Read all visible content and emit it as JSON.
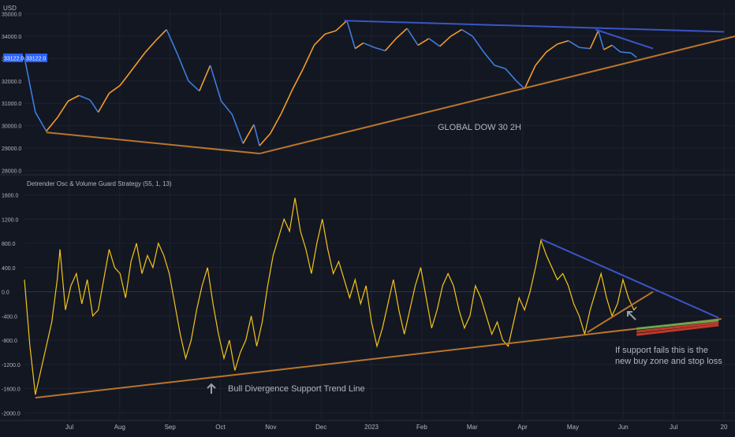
{
  "colors": {
    "background": "#131722",
    "axis_text": "#b2b5be",
    "grid": "#1e2230",
    "price_up": "#f39c2b",
    "price_down": "#3d7ddb",
    "osc_line": "#f5c518",
    "trend_brown": "#b8752a",
    "trend_blue": "#3a55c6",
    "price_badge": "#2962ff",
    "buy_zone_green": "#6aa84f",
    "buy_zone_red": "#c0392b",
    "annotation": "#b2b5be"
  },
  "chart_data": [
    {
      "type": "line",
      "title": "GLOBAL DOW 30 2H",
      "currency_label": "USD",
      "ylim": [
        27800,
        35200
      ],
      "y_ticks": [
        "35000.0",
        "34000.0",
        "33000.0",
        "32000.0",
        "31000.0",
        "30000.0",
        "29000.0",
        "28000.0"
      ],
      "current_price_badge": "33122.0",
      "current_price_badge_b": "33122.0",
      "series": [
        {
          "values": [
            {
              "x": 0,
              "y": 33050
            },
            {
              "x": 4,
              "y": 30600
            },
            {
              "x": 8,
              "y": 29750
            },
            {
              "x": 12,
              "y": 30350
            },
            {
              "x": 16,
              "y": 31100
            },
            {
              "x": 20,
              "y": 31350
            },
            {
              "x": 24,
              "y": 31150
            },
            {
              "x": 27,
              "y": 30600
            },
            {
              "x": 31,
              "y": 31450
            },
            {
              "x": 35,
              "y": 31800
            },
            {
              "x": 40,
              "y": 32600
            },
            {
              "x": 44,
              "y": 33250
            },
            {
              "x": 48,
              "y": 33800
            },
            {
              "x": 52,
              "y": 34300
            },
            {
              "x": 56,
              "y": 33200
            },
            {
              "x": 60,
              "y": 32000
            },
            {
              "x": 64,
              "y": 31550
            },
            {
              "x": 68,
              "y": 32700
            },
            {
              "x": 72,
              "y": 31100
            },
            {
              "x": 76,
              "y": 30500
            },
            {
              "x": 80,
              "y": 29200
            },
            {
              "x": 84,
              "y": 30050
            },
            {
              "x": 86,
              "y": 29100
            },
            {
              "x": 90,
              "y": 29650
            },
            {
              "x": 94,
              "y": 30550
            },
            {
              "x": 98,
              "y": 31600
            },
            {
              "x": 102,
              "y": 32550
            },
            {
              "x": 106,
              "y": 33600
            },
            {
              "x": 110,
              "y": 34100
            },
            {
              "x": 114,
              "y": 34250
            },
            {
              "x": 118,
              "y": 34700
            },
            {
              "x": 121,
              "y": 33450
            },
            {
              "x": 124,
              "y": 33700
            },
            {
              "x": 128,
              "y": 33500
            },
            {
              "x": 132,
              "y": 33350
            },
            {
              "x": 136,
              "y": 33900
            },
            {
              "x": 140,
              "y": 34350
            },
            {
              "x": 144,
              "y": 33600
            },
            {
              "x": 148,
              "y": 33900
            },
            {
              "x": 152,
              "y": 33550
            },
            {
              "x": 156,
              "y": 34000
            },
            {
              "x": 160,
              "y": 34300
            },
            {
              "x": 164,
              "y": 34000
            },
            {
              "x": 168,
              "y": 33300
            },
            {
              "x": 172,
              "y": 32700
            },
            {
              "x": 176,
              "y": 32550
            },
            {
              "x": 180,
              "y": 32000
            },
            {
              "x": 183,
              "y": 31650
            },
            {
              "x": 187,
              "y": 32700
            },
            {
              "x": 191,
              "y": 33300
            },
            {
              "x": 195,
              "y": 33650
            },
            {
              "x": 199,
              "y": 33800
            },
            {
              "x": 203,
              "y": 33500
            },
            {
              "x": 207,
              "y": 33450
            },
            {
              "x": 210,
              "y": 34250
            },
            {
              "x": 212,
              "y": 33400
            },
            {
              "x": 215,
              "y": 33600
            },
            {
              "x": 218,
              "y": 33300
            },
            {
              "x": 222,
              "y": 33250
            },
            {
              "x": 224,
              "y": 33050
            }
          ]
        }
      ],
      "trendlines": [
        {
          "color_key": "trend_brown",
          "points": [
            {
              "x": 8,
              "y": 29700
            },
            {
              "x": 86,
              "y": 28750
            }
          ]
        },
        {
          "color_key": "trend_brown",
          "points": [
            {
              "x": 86,
              "y": 28750
            },
            {
              "x": 260,
              "y": 34000
            }
          ]
        },
        {
          "color_key": "trend_blue",
          "points": [
            {
              "x": 117,
              "y": 34700
            },
            {
              "x": 256,
              "y": 34200
            }
          ]
        },
        {
          "color_key": "trend_blue",
          "points": [
            {
              "x": 209,
              "y": 34300
            },
            {
              "x": 230,
              "y": 33450
            }
          ]
        }
      ]
    },
    {
      "type": "line",
      "title": "Detrender Osc & Volume Guard Strategy (55, 1, 13)",
      "ylim": [
        -2100,
        1750
      ],
      "y_ticks": [
        "1600.0",
        "1200.0",
        "800.0",
        "400.0",
        "0.0",
        "-400.0",
        "-800.0",
        "-1200.0",
        "-1600.0",
        "-2000.0"
      ],
      "x_ticks": [
        "Jul",
        "Aug",
        "Sep",
        "Oct",
        "Nov",
        "Dec",
        "2023",
        "Feb",
        "Mar",
        "Apr",
        "May",
        "Jun",
        "Jul",
        "20"
      ],
      "series": [
        {
          "values": [
            {
              "x": 0,
              "y": 200
            },
            {
              "x": 2,
              "y": -900
            },
            {
              "x": 4,
              "y": -1700
            },
            {
              "x": 6,
              "y": -1300
            },
            {
              "x": 8,
              "y": -900
            },
            {
              "x": 10,
              "y": -500
            },
            {
              "x": 12,
              "y": 200
            },
            {
              "x": 13,
              "y": 700
            },
            {
              "x": 15,
              "y": -300
            },
            {
              "x": 17,
              "y": 100
            },
            {
              "x": 19,
              "y": 300
            },
            {
              "x": 21,
              "y": -200
            },
            {
              "x": 23,
              "y": 200
            },
            {
              "x": 25,
              "y": -400
            },
            {
              "x": 27,
              "y": -300
            },
            {
              "x": 29,
              "y": 200
            },
            {
              "x": 31,
              "y": 700
            },
            {
              "x": 33,
              "y": 400
            },
            {
              "x": 35,
              "y": 300
            },
            {
              "x": 37,
              "y": -100
            },
            {
              "x": 39,
              "y": 500
            },
            {
              "x": 41,
              "y": 800
            },
            {
              "x": 43,
              "y": 300
            },
            {
              "x": 45,
              "y": 600
            },
            {
              "x": 47,
              "y": 400
            },
            {
              "x": 49,
              "y": 800
            },
            {
              "x": 51,
              "y": 600
            },
            {
              "x": 53,
              "y": 300
            },
            {
              "x": 55,
              "y": -200
            },
            {
              "x": 57,
              "y": -700
            },
            {
              "x": 59,
              "y": -1100
            },
            {
              "x": 61,
              "y": -800
            },
            {
              "x": 63,
              "y": -300
            },
            {
              "x": 65,
              "y": 100
            },
            {
              "x": 67,
              "y": 400
            },
            {
              "x": 69,
              "y": -200
            },
            {
              "x": 71,
              "y": -700
            },
            {
              "x": 73,
              "y": -1100
            },
            {
              "x": 75,
              "y": -800
            },
            {
              "x": 77,
              "y": -1300
            },
            {
              "x": 79,
              "y": -1000
            },
            {
              "x": 81,
              "y": -800
            },
            {
              "x": 83,
              "y": -400
            },
            {
              "x": 85,
              "y": -900
            },
            {
              "x": 87,
              "y": -500
            },
            {
              "x": 89,
              "y": 100
            },
            {
              "x": 91,
              "y": 600
            },
            {
              "x": 93,
              "y": 900
            },
            {
              "x": 95,
              "y": 1200
            },
            {
              "x": 97,
              "y": 1000
            },
            {
              "x": 99,
              "y": 1550
            },
            {
              "x": 101,
              "y": 1000
            },
            {
              "x": 103,
              "y": 700
            },
            {
              "x": 105,
              "y": 300
            },
            {
              "x": 107,
              "y": 800
            },
            {
              "x": 109,
              "y": 1200
            },
            {
              "x": 111,
              "y": 700
            },
            {
              "x": 113,
              "y": 300
            },
            {
              "x": 115,
              "y": 500
            },
            {
              "x": 117,
              "y": 200
            },
            {
              "x": 119,
              "y": -100
            },
            {
              "x": 121,
              "y": 200
            },
            {
              "x": 123,
              "y": -200
            },
            {
              "x": 125,
              "y": 100
            },
            {
              "x": 127,
              "y": -500
            },
            {
              "x": 129,
              "y": -900
            },
            {
              "x": 131,
              "y": -600
            },
            {
              "x": 133,
              "y": -200
            },
            {
              "x": 135,
              "y": 200
            },
            {
              "x": 137,
              "y": -300
            },
            {
              "x": 139,
              "y": -700
            },
            {
              "x": 141,
              "y": -300
            },
            {
              "x": 143,
              "y": 100
            },
            {
              "x": 145,
              "y": 400
            },
            {
              "x": 147,
              "y": -100
            },
            {
              "x": 149,
              "y": -600
            },
            {
              "x": 151,
              "y": -300
            },
            {
              "x": 153,
              "y": 100
            },
            {
              "x": 155,
              "y": 300
            },
            {
              "x": 157,
              "y": 100
            },
            {
              "x": 159,
              "y": -300
            },
            {
              "x": 161,
              "y": -600
            },
            {
              "x": 163,
              "y": -400
            },
            {
              "x": 165,
              "y": 100
            },
            {
              "x": 167,
              "y": -100
            },
            {
              "x": 169,
              "y": -400
            },
            {
              "x": 171,
              "y": -700
            },
            {
              "x": 173,
              "y": -500
            },
            {
              "x": 175,
              "y": -800
            },
            {
              "x": 177,
              "y": -900
            },
            {
              "x": 179,
              "y": -500
            },
            {
              "x": 181,
              "y": -100
            },
            {
              "x": 183,
              "y": -300
            },
            {
              "x": 185,
              "y": 0
            },
            {
              "x": 187,
              "y": 400
            },
            {
              "x": 189,
              "y": 850
            },
            {
              "x": 191,
              "y": 600
            },
            {
              "x": 193,
              "y": 400
            },
            {
              "x": 195,
              "y": 200
            },
            {
              "x": 197,
              "y": 300
            },
            {
              "x": 199,
              "y": 100
            },
            {
              "x": 201,
              "y": -200
            },
            {
              "x": 203,
              "y": -400
            },
            {
              "x": 205,
              "y": -700
            },
            {
              "x": 207,
              "y": -300
            },
            {
              "x": 209,
              "y": 0
            },
            {
              "x": 211,
              "y": 300
            },
            {
              "x": 213,
              "y": -100
            },
            {
              "x": 215,
              "y": -400
            },
            {
              "x": 217,
              "y": -200
            },
            {
              "x": 219,
              "y": 200
            },
            {
              "x": 221,
              "y": -100
            },
            {
              "x": 223,
              "y": -300
            },
            {
              "x": 224,
              "y": -250
            }
          ]
        }
      ],
      "trendlines": [
        {
          "color_key": "trend_brown",
          "points": [
            {
              "x": 4,
              "y": -1750
            },
            {
              "x": 255,
              "y": -450
            }
          ]
        },
        {
          "color_key": "trend_blue",
          "points": [
            {
              "x": 189,
              "y": 870
            },
            {
              "x": 254,
              "y": -430
            }
          ]
        },
        {
          "color_key": "trend_brown",
          "points": [
            {
              "x": 206,
              "y": -670
            },
            {
              "x": 230,
              "y": 0
            }
          ]
        }
      ],
      "buy_zone": [
        {
          "color_key": "buy_zone_green",
          "points": [
            {
              "x": 224,
              "y": -610
            },
            {
              "x": 254,
              "y": -470
            }
          ]
        },
        {
          "color_key": "buy_zone_red",
          "points": [
            {
              "x": 224,
              "y": -660
            },
            {
              "x": 254,
              "y": -510
            }
          ]
        },
        {
          "color_key": "buy_zone_red",
          "points": [
            {
              "x": 224,
              "y": -710
            },
            {
              "x": 254,
              "y": -550
            }
          ]
        }
      ]
    }
  ],
  "annotations": {
    "support_label": "Bull Divergence Support Trend Line",
    "note_line1": "If support fails this is the",
    "note_line2": "new buy zone and stop loss"
  }
}
